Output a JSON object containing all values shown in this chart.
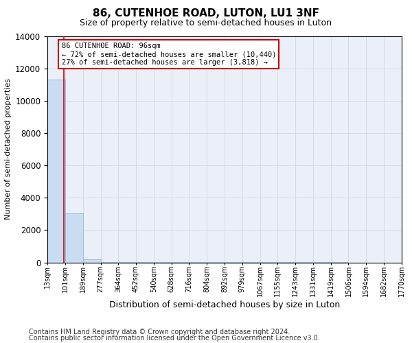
{
  "title": "86, CUTENHOE ROAD, LUTON, LU1 3NF",
  "subtitle": "Size of property relative to semi-detached houses in Luton",
  "xlabel": "Distribution of semi-detached houses by size in Luton",
  "ylabel": "Number of semi-detached properties",
  "footnote1": "Contains HM Land Registry data © Crown copyright and database right 2024.",
  "footnote2": "Contains public sector information licensed under the Open Government Licence v3.0.",
  "bar_edges": [
    13,
    101,
    189,
    277,
    364,
    452,
    540,
    628,
    716,
    804,
    892,
    979,
    1067,
    1155,
    1243,
    1331,
    1419,
    1506,
    1594,
    1682,
    1770
  ],
  "bar_heights": [
    11300,
    3050,
    200,
    30,
    15,
    8,
    5,
    3,
    2,
    2,
    1,
    1,
    1,
    1,
    1,
    1,
    1,
    0,
    0,
    0
  ],
  "bar_color": "#c9ddf2",
  "bar_edge_color": "#8ab0d0",
  "grid_color": "#d0d8e8",
  "property_x": 96,
  "annotation_title": "86 CUTENHOE ROAD: 96sqm",
  "annotation_line1": "← 72% of semi-detached houses are smaller (10,440)",
  "annotation_line2": "27% of semi-detached houses are larger (3,818) →",
  "annotation_box_color": "#ffffff",
  "annotation_border_color": "#cc0000",
  "vline_color": "#cc0000",
  "ylim": [
    0,
    14000
  ],
  "xlim": [
    13,
    1770
  ],
  "title_fontsize": 11,
  "subtitle_fontsize": 9,
  "tick_label_fontsize": 7,
  "ylabel_fontsize": 8,
  "xlabel_fontsize": 9,
  "annotation_fontsize": 7.5,
  "footnote_fontsize": 7,
  "background_color": "#eaeff8"
}
